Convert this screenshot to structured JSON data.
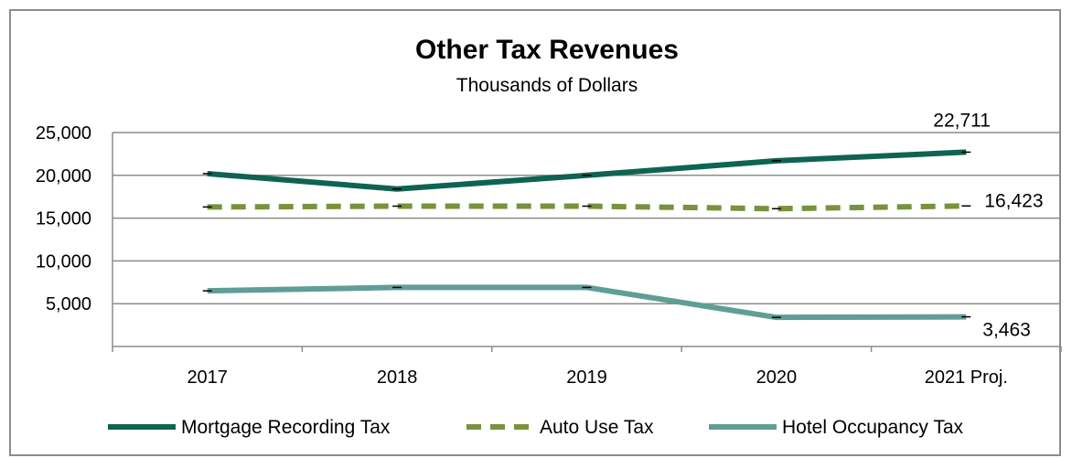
{
  "chart_data": {
    "type": "line",
    "title": "Other Tax Revenues",
    "subtitle": "Thousands of Dollars",
    "categories": [
      "2017",
      "2018",
      "2019",
      "2020",
      "2021 Proj."
    ],
    "ylim": [
      0,
      25000
    ],
    "yticks": [
      "25,000",
      "20,000",
      "15,000",
      "10,000",
      "5,000"
    ],
    "ytick_values": [
      25000,
      20000,
      15000,
      10000,
      5000
    ],
    "grid": true,
    "legend_position": "bottom",
    "series": [
      {
        "name": "Mortgage Recording Tax",
        "values": [
          20200,
          18400,
          20000,
          21700,
          22711
        ],
        "color": "#0f6352",
        "style": "solid"
      },
      {
        "name": "Auto Use Tax",
        "values": [
          16300,
          16400,
          16400,
          16100,
          16423
        ],
        "color": "#77933c",
        "style": "dashed"
      },
      {
        "name": "Hotel Occupancy Tax",
        "values": [
          6500,
          6900,
          6900,
          3400,
          3463
        ],
        "color": "#5f9e96",
        "style": "solid"
      }
    ],
    "annotations": [
      {
        "series": 0,
        "index": 4,
        "text": "22,711"
      },
      {
        "series": 1,
        "index": 4,
        "text": "16,423"
      },
      {
        "series": 2,
        "index": 4,
        "text": "3,463"
      }
    ]
  }
}
